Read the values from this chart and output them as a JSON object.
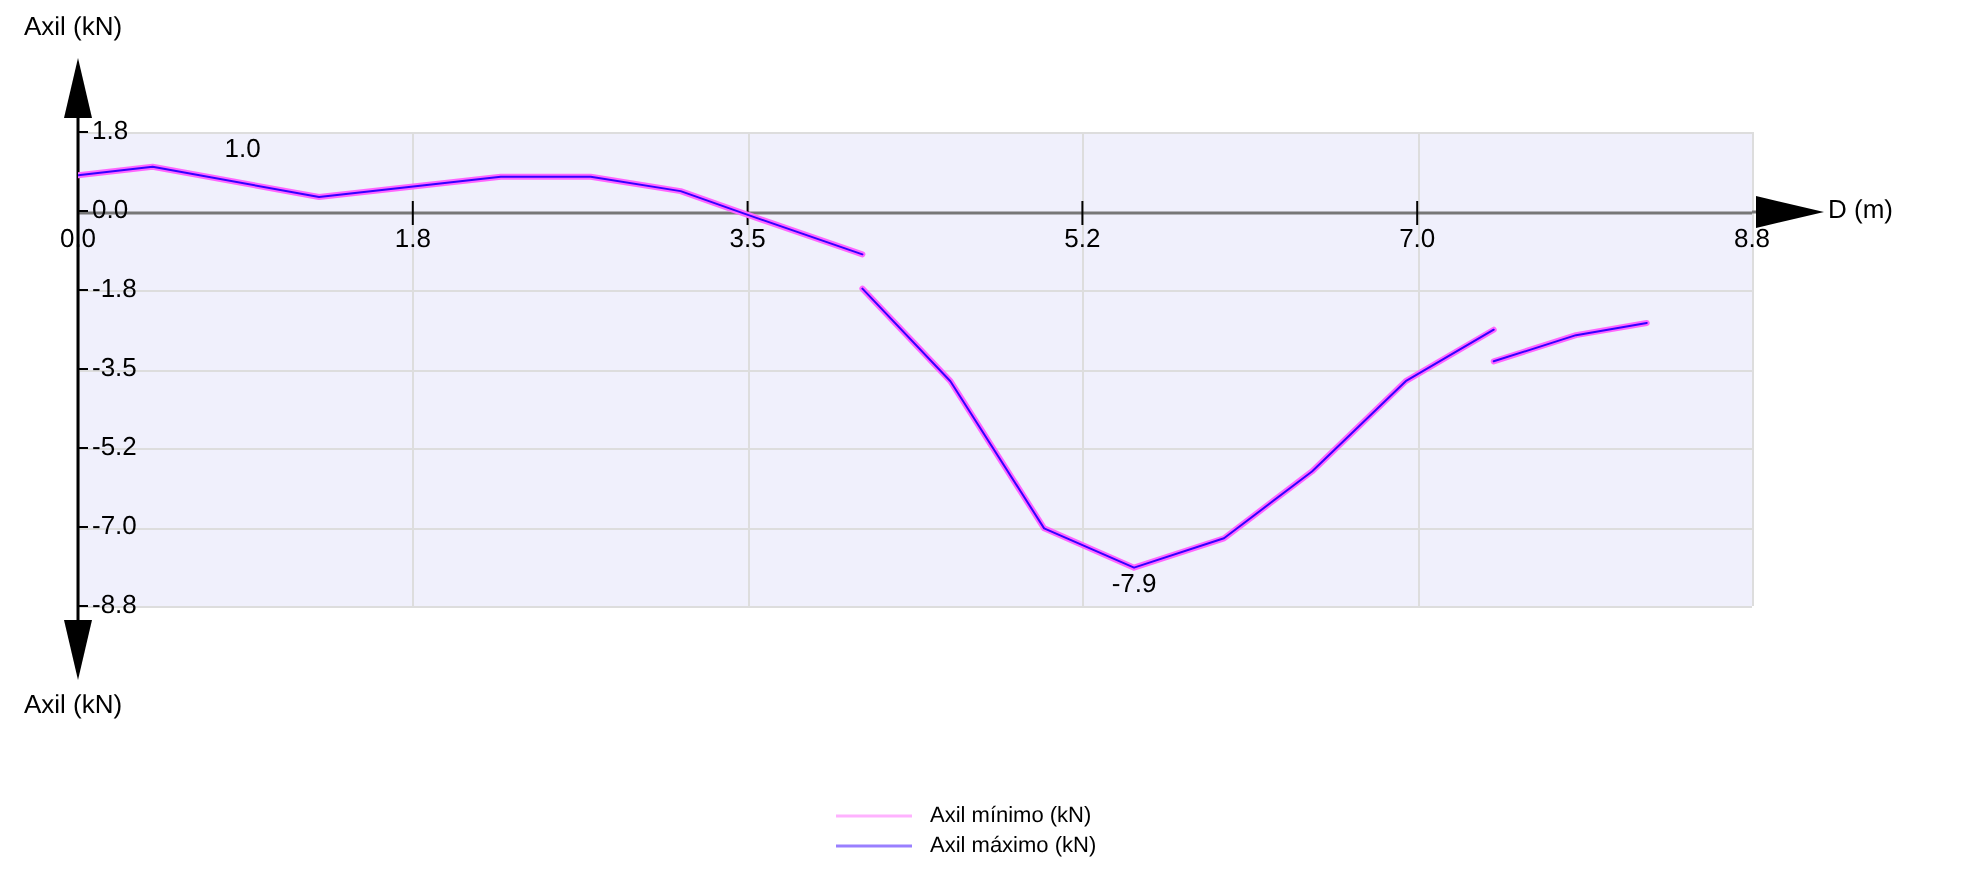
{
  "chart_data": {
    "type": "line",
    "xlabel": "D (m)",
    "ylabel": "Axil (kN)",
    "series": [
      {
        "name": "Axil mínimo (kN)",
        "color": "#ff66ff",
        "x": [
          0,
          0.39,
          1.26,
          2.21,
          2.68,
          3.15,
          3.49,
          4.1
        ],
        "values": [
          0.79,
          0.98,
          0.31,
          0.76,
          0.76,
          0.44,
          -0.07,
          -0.96
        ]
      },
      {
        "color": "#ff66ff",
        "x": [
          4.1,
          4.56,
          5.05,
          5.52,
          5.99,
          6.45,
          6.94,
          7.4
        ],
        "values": [
          -1.72,
          -3.77,
          -7.03,
          -7.9,
          -7.25,
          -5.77,
          -3.77,
          -2.63
        ]
      },
      {
        "color": "#ff66ff",
        "x": [
          7.4,
          7.83,
          8.2
        ],
        "values": [
          -3.33,
          -2.75,
          -2.48
        ]
      },
      {
        "name": "Axil máximo (kN)",
        "color": "#3300ff",
        "x": [
          0,
          0.39,
          1.26,
          2.21,
          2.68,
          3.15,
          3.49,
          4.1
        ],
        "values": [
          0.79,
          0.98,
          0.31,
          0.76,
          0.76,
          0.44,
          -0.07,
          -0.96
        ]
      },
      {
        "color": "#3300ff",
        "x": [
          4.1,
          4.56,
          5.05,
          5.52,
          5.99,
          6.45,
          6.94,
          7.4
        ],
        "values": [
          -1.72,
          -3.77,
          -7.03,
          -7.9,
          -7.25,
          -5.77,
          -3.77,
          -2.63
        ]
      },
      {
        "color": "#3300ff",
        "x": [
          7.4,
          7.83,
          8.2
        ],
        "values": [
          -3.33,
          -2.75,
          -2.48
        ]
      }
    ],
    "annotations": [
      {
        "text": "1.0",
        "x": 0.39,
        "y": 0.98
      },
      {
        "text": "-7.9",
        "x": 5.52,
        "y": -7.9
      }
    ],
    "xlim": [
      0,
      8.75
    ],
    "ylim": [
      -8.75,
      1.75
    ],
    "xticks": [
      {
        "value": 0,
        "label": "0.0"
      },
      {
        "value": 1.75,
        "label": "1.8"
      },
      {
        "value": 3.5,
        "label": "3.5"
      },
      {
        "value": 5.25,
        "label": "5.2"
      },
      {
        "value": 7,
        "label": "7.0"
      },
      {
        "value": 8.75,
        "label": "8.8"
      }
    ],
    "yticks": [
      {
        "value": 1.75,
        "label": "1.8"
      },
      {
        "value": 0,
        "label": "0.0"
      },
      {
        "value": -1.75,
        "label": "-1.8"
      },
      {
        "value": -3.5,
        "label": "-3.5"
      },
      {
        "value": -5.25,
        "label": "-5.2"
      },
      {
        "value": -7,
        "label": "-7.0"
      },
      {
        "value": -8.75,
        "label": "-8.8"
      }
    ],
    "grid": true,
    "legend": "bottom",
    "marker": "none",
    "line_style": "solid"
  }
}
